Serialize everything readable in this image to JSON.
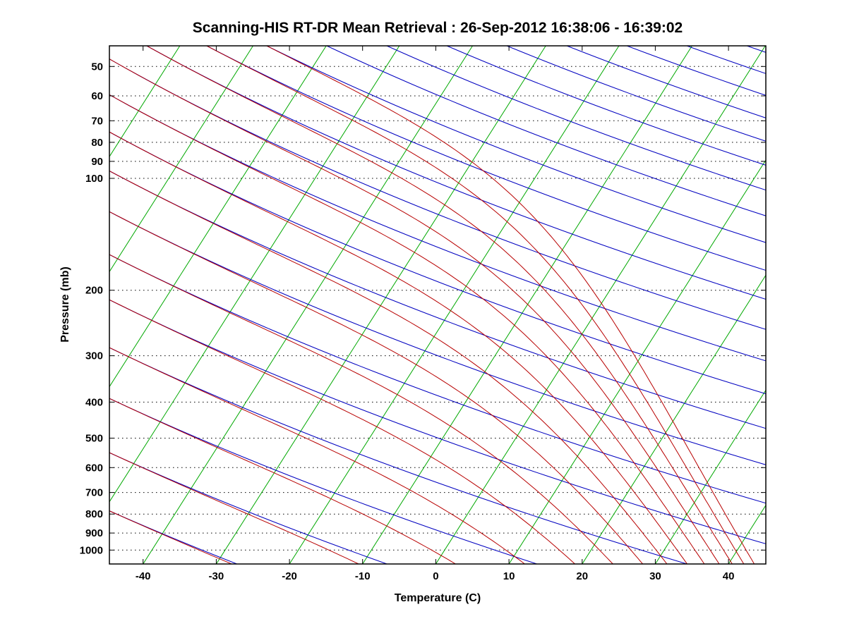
{
  "chart_data": {
    "type": "line",
    "variant": "skew-t-log-p-sounding-diagram",
    "title": "Scanning-HIS RT-DR Mean Retrieval : 26-Sep-2012 16:38:06 - 16:39:02",
    "xlabel": "Temperature (C)",
    "ylabel": "Pressure (mb)",
    "pressure_scale": "log",
    "pressure_axis_range_mb": [
      44,
      1090
    ],
    "x_axis_range_surface_c": [
      -44.6,
      45.1
    ],
    "skew_c_per_decade": 32.3,
    "x_tick_labels_c": [
      -40,
      -30,
      -20,
      -10,
      0,
      10,
      20,
      30,
      40
    ],
    "y_tick_labels_mb": [
      50,
      60,
      70,
      80,
      90,
      100,
      200,
      300,
      400,
      500,
      600,
      700,
      800,
      900,
      1000
    ],
    "grid": {
      "isobars_mb": [
        50,
        60,
        70,
        80,
        90,
        100,
        200,
        300,
        400,
        500,
        600,
        700,
        800,
        900,
        1000
      ],
      "style": "dotted",
      "color": "#000000"
    },
    "legend": "none",
    "axis_color": "#000000",
    "text_color": "#000000",
    "background_color": "#ffffff",
    "series": [
      {
        "name": "isotherms",
        "units": "deg C",
        "color": "#00a800",
        "style": "solid",
        "values": [
          -100,
          -90,
          -80,
          -70,
          -60,
          -50,
          -40,
          -30,
          -20,
          -10,
          0,
          10,
          20,
          30,
          40
        ]
      },
      {
        "name": "dry_adiabats",
        "units": "K potential temperature",
        "color": "#0000c0",
        "style": "solid",
        "values": [
          220,
          240,
          260,
          280,
          300,
          320,
          340,
          360,
          380,
          400,
          420,
          440,
          460,
          480,
          500,
          520,
          540,
          560,
          580,
          600,
          620,
          640,
          660,
          680
        ]
      },
      {
        "name": "moist_adiabats",
        "units": "K equivalent potential temperature",
        "color": "#b80000",
        "style": "solid",
        "values": [
          220,
          240,
          260,
          280,
          300,
          320,
          340,
          360,
          380,
          400,
          420,
          440,
          460,
          480,
          500
        ]
      }
    ]
  }
}
